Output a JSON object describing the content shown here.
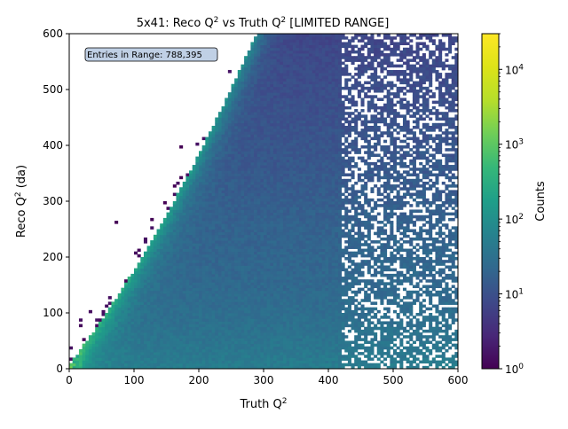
{
  "chart_data": {
    "type": "heatmap",
    "title_main": "5x41: Reco Q",
    "title_mid": " vs Truth Q",
    "title_end": " [LIMITED RANGE]",
    "title_sup": "2",
    "xlabel_main": "Truth Q",
    "xlabel_sup": "2",
    "ylabel_main": "Reco Q",
    "ylabel_sup": "2",
    "ylabel_end": " (da)",
    "annotation": "Entries in Range: 788,395",
    "xlim": [
      0,
      600
    ],
    "ylim": [
      0,
      600
    ],
    "x_ticks": [
      "0",
      "100",
      "200",
      "300",
      "400",
      "500",
      "600"
    ],
    "y_ticks": [
      "0",
      "100",
      "200",
      "300",
      "400",
      "500",
      "600"
    ],
    "bin_count": 120,
    "colormap": "viridis",
    "colorbar": {
      "label": "Counts",
      "scale": "log",
      "range": [
        1,
        30000
      ],
      "tick_base": "10",
      "tick_exponents": [
        "0",
        "1",
        "2",
        "3",
        "4"
      ]
    }
  }
}
